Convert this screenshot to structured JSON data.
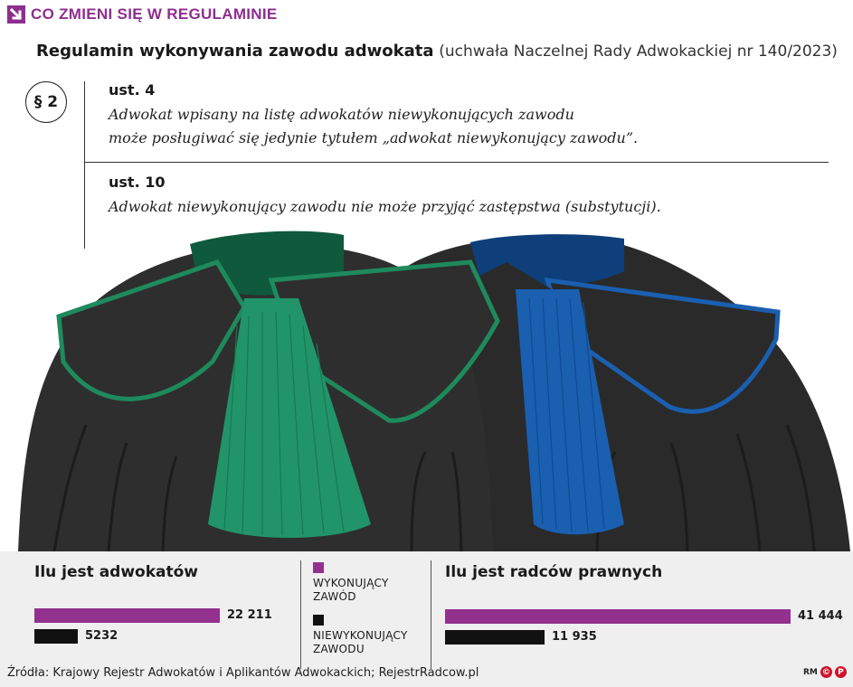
{
  "kicker": "CO ZMIENI SIĘ W REGULAMINIE",
  "headline": {
    "title": "Regulamin wykonywania zawodu adwokata",
    "subtitle": "(uchwała Naczelnej Rady Adwokackiej nr 140/2023)"
  },
  "paragraph_badge": "§ 2",
  "sections": [
    {
      "label": "ust. 4",
      "lines": [
        "Adwokat wpisany na listę adwokatów niewykonujących zawodu",
        "może posługiwać się jedynie tytułem „adwokat niewykonujący zawodu”."
      ]
    },
    {
      "label": "ust. 10",
      "lines": [
        "Adwokat niewykonujący zawodu nie może przyjąć zastępstwa (substytucji)."
      ]
    }
  ],
  "legend": [
    {
      "label_line1": "WYKONUJĄCY",
      "label_line2": "ZAWÓD",
      "color": "#93318f"
    },
    {
      "label_line1": "NIEWYKONUJĄCY",
      "label_line2": "ZAWODU",
      "color": "#111111"
    }
  ],
  "chart_data": [
    {
      "type": "bar",
      "title": "Ilu jest adwokatów",
      "categories": [
        "WYKONUJĄCY ZAWÓD",
        "NIEWYKONUJĄCY ZAWODU"
      ],
      "values": [
        22211,
        5232
      ],
      "value_labels": [
        "22 211",
        "5232"
      ],
      "colors": [
        "#93318f",
        "#111111"
      ]
    },
    {
      "type": "bar",
      "title": "Ilu jest radców prawnych",
      "categories": [
        "WYKONUJĄCY ZAWÓD",
        "NIEWYKONUJĄCY ZAWODU"
      ],
      "values": [
        41444,
        11935
      ],
      "value_labels": [
        "41 444",
        "11 935"
      ],
      "colors": [
        "#93318f",
        "#111111"
      ]
    }
  ],
  "source": "Źródła: Krajowy Rejestr Adwokatów i Aplikantów Adwokackich; RejestrRadcow.pl",
  "logo": {
    "initials": "RM",
    "mark": "©",
    "mark2": "P"
  },
  "colors": {
    "accent": "#8e2e8e",
    "adwokat_collar": "#1e8a5e",
    "radca_collar": "#1a5fb0",
    "gown": "#2b2b2b"
  }
}
